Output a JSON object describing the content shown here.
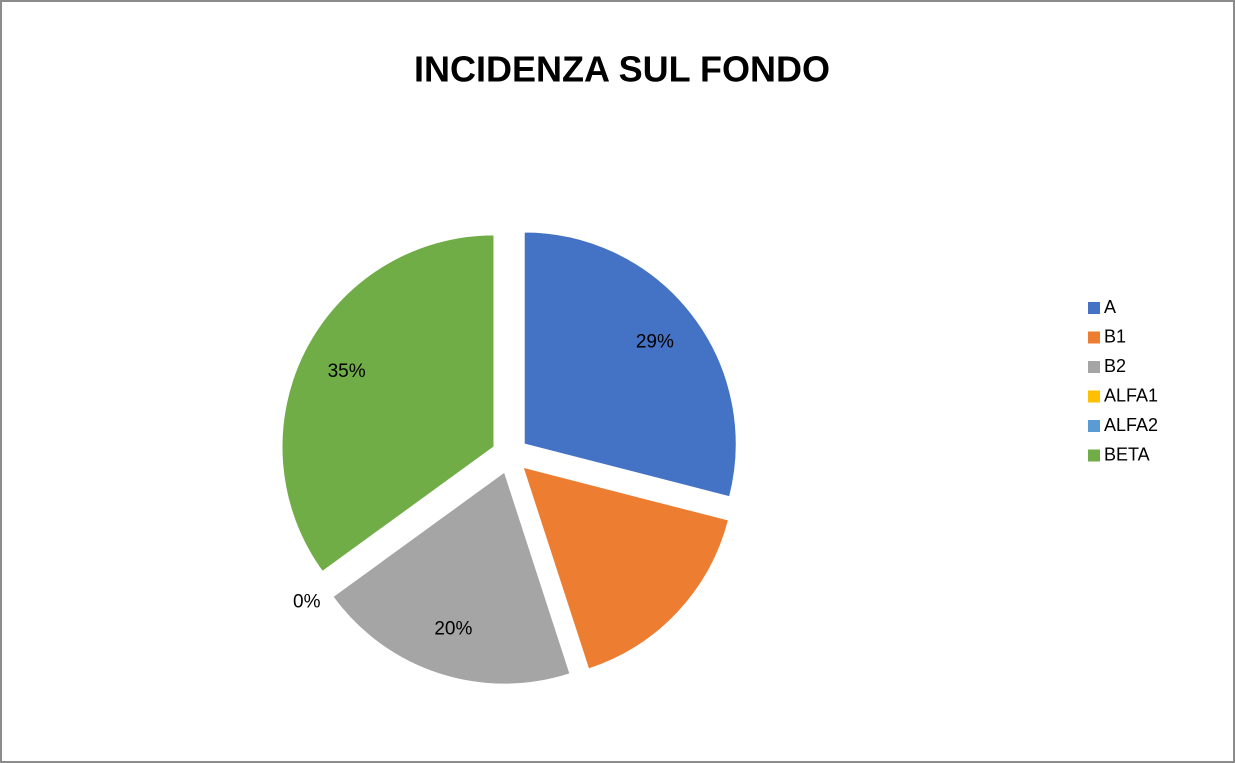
{
  "chart_data": {
    "type": "pie",
    "title": "INCIDENZA SUL FONDO",
    "categories": [
      "A",
      "B1",
      "B2",
      "ALFA1",
      "ALFA2",
      "BETA"
    ],
    "values": [
      29,
      16,
      20,
      0,
      0,
      35
    ],
    "value_labels": [
      "29%",
      null,
      "20%",
      "0%",
      null,
      "35%"
    ],
    "colors": [
      "#4472c4",
      "#ed7d31",
      "#a5a5a5",
      "#ffc000",
      "#5b9bd5",
      "#70ad47"
    ],
    "legend": "right"
  }
}
